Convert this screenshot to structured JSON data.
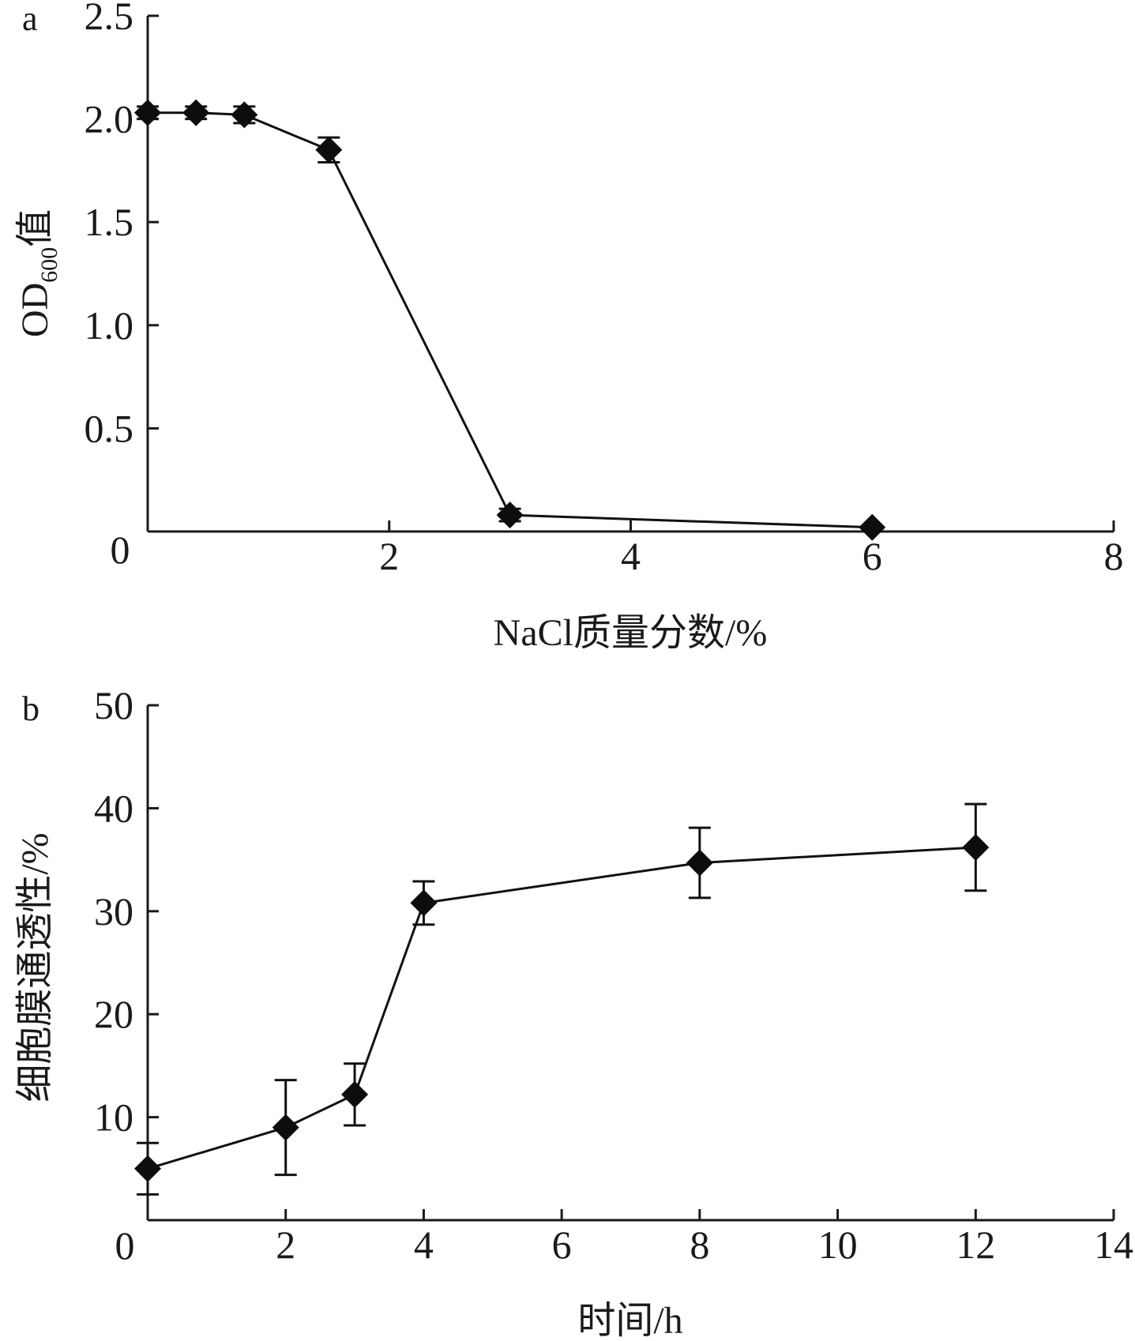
{
  "chart_data": [
    {
      "type": "line",
      "panel": "a",
      "xlabel": "NaCl质量分数/%",
      "ylabel_main": "OD",
      "ylabel_sub": "600",
      "ylabel_suffix": "值",
      "xlim": [
        0,
        8
      ],
      "ylim": [
        0,
        2.5
      ],
      "xticks": [
        2,
        4,
        6,
        8
      ],
      "xtick_labels": [
        "2",
        "4",
        "6",
        "8"
      ],
      "yticks": [
        0.5,
        1.0,
        1.5,
        2.0,
        2.5
      ],
      "ytick_labels": [
        "0.5",
        "1.0",
        "1.5",
        "2.0",
        "2.5"
      ],
      "origin_label": "0",
      "grid": false,
      "series": [
        {
          "x": [
            0,
            0.4,
            0.8,
            1.5,
            3,
            6
          ],
          "y": [
            2.03,
            2.03,
            2.02,
            1.85,
            0.08,
            0.02
          ],
          "err": [
            0.03,
            0.03,
            0.04,
            0.06,
            0.03,
            0.0
          ]
        }
      ]
    },
    {
      "type": "line",
      "panel": "b",
      "xlabel": "时间/h",
      "ylabel": "细胞膜通透性/%",
      "xlim": [
        0,
        14
      ],
      "ylim": [
        0,
        50
      ],
      "xticks": [
        2,
        4,
        6,
        8,
        10,
        12,
        14
      ],
      "xtick_labels": [
        "2",
        "4",
        "6",
        "8",
        "10",
        "12",
        "14"
      ],
      "yticks": [
        10,
        20,
        30,
        40,
        50
      ],
      "ytick_labels": [
        "10",
        "20",
        "30",
        "40",
        "50"
      ],
      "origin_label": "0",
      "grid": false,
      "series": [
        {
          "x": [
            0,
            2,
            3,
            4,
            8,
            12
          ],
          "y": [
            5,
            9,
            12.2,
            30.8,
            34.7,
            36.2
          ],
          "err": [
            2.5,
            4.6,
            3.0,
            2.1,
            3.4,
            4.2
          ]
        }
      ]
    }
  ],
  "colors": {
    "ink": "#111111"
  }
}
